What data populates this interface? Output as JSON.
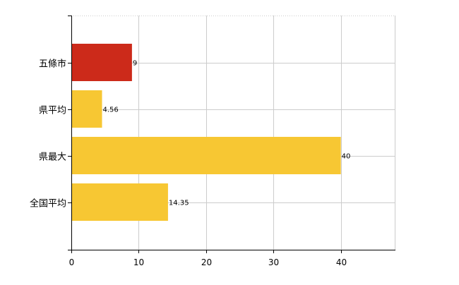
{
  "chart_data": {
    "type": "bar",
    "orientation": "horizontal",
    "title": "",
    "xlabel": "",
    "ylabel": "",
    "categories": [
      "五條市",
      "県平均",
      "県最大",
      "全国平均"
    ],
    "values": [
      9,
      4.56,
      40,
      14.35
    ],
    "data_labels": [
      "9",
      "4.56",
      "40",
      "14.35"
    ],
    "bar_colors": [
      "#cc2a1a",
      "#f7c733",
      "#f7c733",
      "#f7c733"
    ],
    "xlim": [
      0,
      48
    ],
    "xticks": [
      0,
      10,
      20,
      30,
      40
    ],
    "xtick_labels": [
      "0",
      "10",
      "20",
      "30",
      "40"
    ],
    "grid": true,
    "gridline_color": "#cccccc",
    "axis_color": "#000000",
    "legend": "none"
  }
}
